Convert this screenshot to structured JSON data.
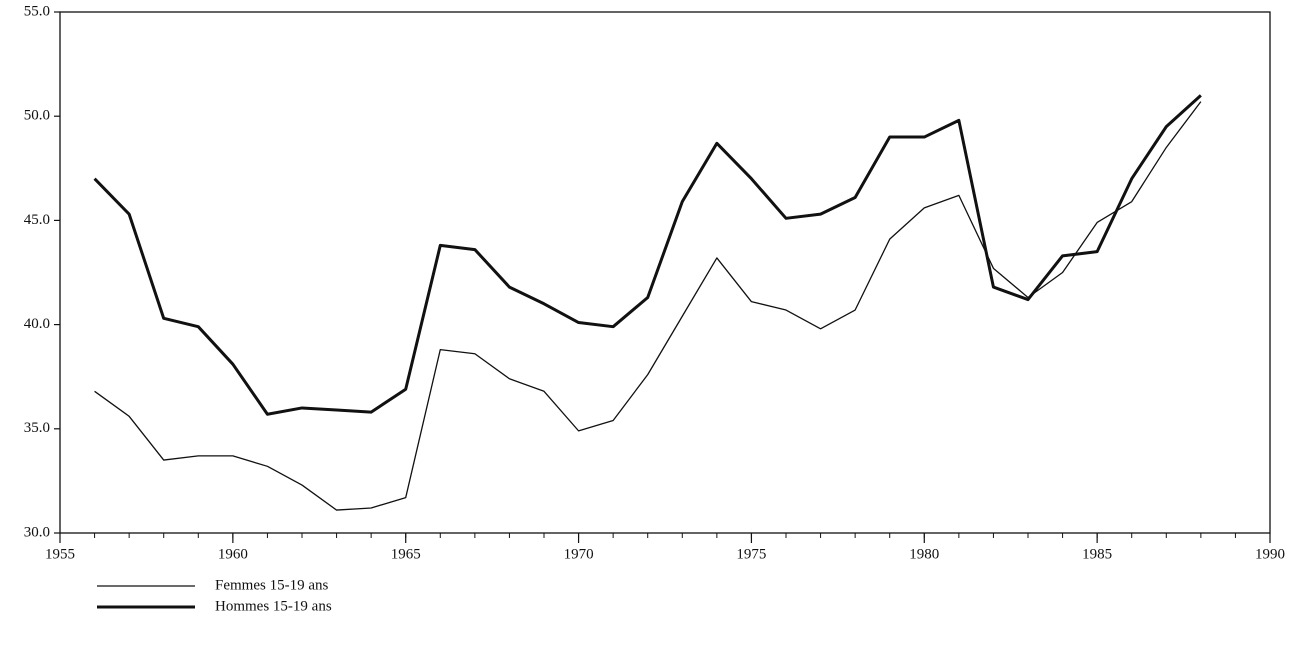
{
  "chart_data": {
    "type": "line",
    "x": [
      1956,
      1957,
      1958,
      1959,
      1960,
      1961,
      1962,
      1963,
      1964,
      1965,
      1966,
      1967,
      1968,
      1969,
      1970,
      1971,
      1972,
      1973,
      1974,
      1975,
      1976,
      1977,
      1978,
      1979,
      1980,
      1981,
      1982,
      1983,
      1984,
      1985,
      1986,
      1987,
      1988
    ],
    "series": [
      {
        "name": "Femmes 15-19 ans",
        "color": "#111111",
        "width": 1.3,
        "values": [
          36.8,
          35.6,
          33.5,
          33.7,
          33.7,
          33.2,
          32.3,
          31.1,
          31.2,
          31.7,
          38.8,
          38.6,
          37.4,
          36.8,
          34.9,
          35.4,
          37.6,
          40.4,
          43.2,
          41.1,
          40.7,
          39.8,
          40.7,
          44.1,
          45.6,
          46.2,
          42.7,
          41.3,
          42.5,
          44.9,
          45.9,
          48.5,
          50.7
        ]
      },
      {
        "name": "Hommes 15-19 ans",
        "color": "#111111",
        "width": 3,
        "values": [
          47.0,
          45.3,
          40.3,
          39.9,
          38.1,
          35.7,
          36.0,
          35.9,
          35.8,
          36.9,
          43.8,
          43.6,
          41.8,
          41.0,
          40.1,
          39.9,
          41.3,
          45.9,
          48.7,
          47.0,
          45.1,
          45.3,
          46.1,
          49.0,
          49.0,
          49.8,
          41.8,
          41.2,
          43.3,
          43.5,
          47.0,
          49.5,
          51.0
        ]
      }
    ],
    "xlim": [
      1955,
      1990
    ],
    "xticks": [
      1955,
      1960,
      1965,
      1970,
      1975,
      1980,
      1985,
      1990
    ],
    "ylim": [
      30,
      55
    ],
    "yticks": [
      {
        "value": 30,
        "label": "30.0"
      },
      {
        "value": 35,
        "label": "35.0"
      },
      {
        "value": 40,
        "label": "40.0"
      },
      {
        "value": 45,
        "label": "45.0"
      },
      {
        "value": 50,
        "label": "50.0"
      },
      {
        "value": 55,
        "label": "55.0"
      }
    ],
    "grid": false
  }
}
